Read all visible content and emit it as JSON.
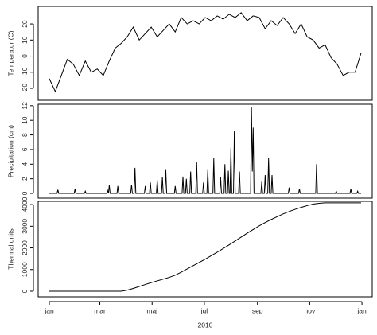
{
  "chart_data": [
    {
      "type": "line",
      "ylabel": "Temperatur (C)",
      "color": "#000000",
      "x": [
        0,
        7,
        14,
        21,
        28,
        35,
        42,
        49,
        56,
        63,
        70,
        77,
        84,
        91,
        98,
        105,
        112,
        119,
        126,
        133,
        140,
        147,
        154,
        161,
        168,
        175,
        182,
        189,
        196,
        203,
        210,
        217,
        224,
        231,
        238,
        245,
        252,
        259,
        266,
        273,
        280,
        287,
        294,
        301,
        308,
        315,
        322,
        329,
        336,
        343,
        350,
        357,
        364
      ],
      "values": [
        -14,
        -22,
        -12,
        -2,
        -5,
        -12,
        -3,
        -10,
        -8,
        -12,
        -3,
        5,
        8,
        12,
        18,
        10,
        14,
        18,
        12,
        16,
        20,
        15,
        24,
        20,
        22,
        20,
        24,
        22,
        25,
        23,
        26,
        24,
        27,
        22,
        25,
        24,
        17,
        22,
        19,
        24,
        20,
        14,
        20,
        12,
        10,
        5,
        7,
        -1,
        -5,
        -12,
        -10,
        -10,
        2
      ],
      "xlim": [
        -13,
        377
      ],
      "ylim": [
        -27.4,
        30.9
      ],
      "yticks": [
        -20,
        -10,
        0,
        10,
        20
      ]
    },
    {
      "type": "line",
      "ylabel": "Precipitation (cm)",
      "color": "#000000",
      "x": [
        0,
        9,
        10,
        11,
        29,
        30,
        31,
        41,
        42,
        43,
        67,
        68,
        69,
        70,
        71,
        79,
        80,
        81,
        95,
        96,
        97,
        99,
        100,
        101,
        111,
        112,
        113,
        117,
        118,
        119,
        125,
        126,
        127,
        131,
        132,
        133,
        135,
        136,
        137,
        146,
        147,
        148,
        155,
        156,
        157,
        159,
        160,
        161,
        164,
        165,
        166,
        171,
        172,
        173,
        179,
        180,
        181,
        184,
        185,
        186,
        191,
        192,
        193,
        199,
        200,
        201,
        204,
        205,
        206,
        208,
        209,
        210,
        211,
        212,
        213,
        215,
        216,
        217,
        221,
        222,
        223,
        235,
        236,
        237,
        238,
        239,
        247,
        248,
        249,
        251,
        252,
        253,
        255,
        256,
        257,
        259,
        260,
        261,
        279,
        280,
        281,
        291,
        292,
        293,
        311,
        312,
        313,
        334,
        335,
        336,
        351,
        352,
        353,
        359,
        360,
        361,
        364
      ],
      "values": [
        0,
        0,
        0.5,
        0,
        0,
        0.6,
        0,
        0,
        0.3,
        0,
        0,
        0.4,
        0,
        1.1,
        0,
        0,
        1.0,
        0,
        0,
        1.2,
        0,
        0,
        3.5,
        0,
        0,
        1.0,
        0,
        0,
        1.5,
        0,
        0,
        1.8,
        0,
        0,
        2.2,
        0,
        0,
        3.2,
        0,
        0,
        1.0,
        0,
        0,
        2.3,
        0,
        0,
        2.0,
        0,
        0,
        3.0,
        0,
        0,
        4.3,
        0,
        0,
        1.5,
        0,
        0,
        3.2,
        0,
        0,
        4.8,
        0,
        0,
        2.2,
        0,
        0,
        4.0,
        0,
        0,
        3.1,
        0,
        0,
        6.2,
        0,
        0,
        8.5,
        0,
        0,
        3.0,
        0,
        0,
        11.8,
        3,
        9.0,
        0,
        0,
        1.6,
        0,
        0,
        2.5,
        0,
        0,
        4.8,
        0,
        0,
        2.5,
        0,
        0,
        0.8,
        0,
        0,
        0.6,
        0,
        0,
        4.0,
        0,
        0,
        0.3,
        0,
        0,
        0.6,
        0,
        0,
        0.3,
        0,
        0
      ],
      "xlim": [
        -13,
        377
      ],
      "ylim": [
        -0.65,
        12.2
      ],
      "yticks": [
        0,
        2,
        4,
        6,
        8,
        10,
        12
      ]
    },
    {
      "type": "line",
      "ylabel": "Thermal units",
      "xlabel": "2010",
      "color": "#000000",
      "x": [
        0,
        7,
        14,
        21,
        28,
        35,
        42,
        49,
        56,
        63,
        70,
        77,
        84,
        91,
        98,
        105,
        112,
        119,
        126,
        133,
        140,
        147,
        154,
        161,
        168,
        175,
        182,
        189,
        196,
        203,
        210,
        217,
        224,
        231,
        238,
        245,
        252,
        259,
        266,
        273,
        280,
        287,
        294,
        301,
        308,
        315,
        322,
        329,
        336,
        343,
        350,
        357,
        364
      ],
      "values": [
        0,
        0,
        0,
        0,
        0,
        0,
        0,
        0,
        0,
        0,
        0,
        0,
        0,
        50,
        130,
        220,
        310,
        400,
        480,
        560,
        640,
        740,
        880,
        1030,
        1180,
        1330,
        1480,
        1640,
        1800,
        1970,
        2140,
        2320,
        2500,
        2680,
        2850,
        3020,
        3170,
        3310,
        3440,
        3570,
        3680,
        3780,
        3870,
        3950,
        4020,
        4060,
        4080,
        4080,
        4080,
        4080,
        4080,
        4080,
        4080
      ],
      "xlim": [
        -13,
        377
      ],
      "ylim": [
        -257,
        4150
      ],
      "yticks": [
        0,
        1000,
        2000,
        3000,
        4000
      ],
      "xticks": [
        {
          "value": 0,
          "label": "jan"
        },
        {
          "value": 59,
          "label": "mar"
        },
        {
          "value": 120,
          "label": "maj"
        },
        {
          "value": 181,
          "label": "jul"
        },
        {
          "value": 243,
          "label": "sep"
        },
        {
          "value": 304,
          "label": "nov"
        },
        {
          "value": 365,
          "label": "jan"
        }
      ]
    }
  ]
}
